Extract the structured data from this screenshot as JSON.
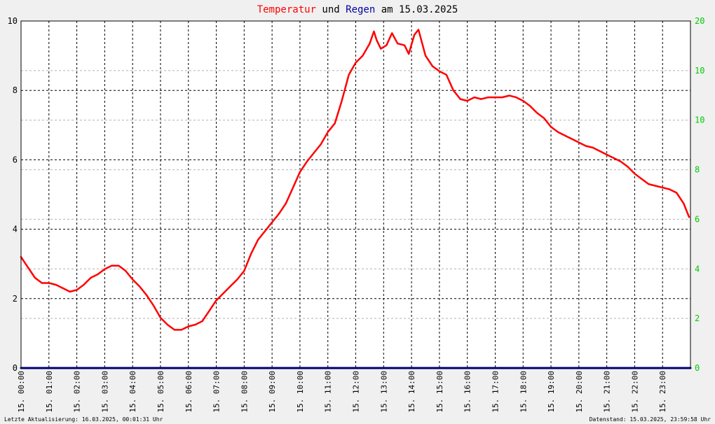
{
  "title": {
    "part1": "Temperatur",
    "part2": " und ",
    "part3": "Regen",
    "part4": " am 15.03.2025"
  },
  "footer": {
    "left": "Letzte Aktualisierung: 16.03.2025, 00:01:31 Uhr",
    "right": "Datenstand: 15.03.2025, 23:59:58 Uhr"
  },
  "colors": {
    "temperature": "#ff0000",
    "rain": "#0000a0",
    "right_axis": "#00cc00",
    "background": "#f0f0f0",
    "grid": "#000000"
  },
  "chart_data": {
    "type": "line",
    "x_tick_labels": [
      "15. 00:00",
      "15. 01:00",
      "15. 02:00",
      "15. 03:00",
      "15. 04:00",
      "15. 05:00",
      "15. 06:00",
      "15. 07:00",
      "15. 08:00",
      "15. 09:00",
      "15. 10:00",
      "15. 11:00",
      "15. 12:00",
      "15. 13:00",
      "15. 14:00",
      "15. 15:00",
      "15. 16:00",
      "15. 17:00",
      "15. 18:00",
      "15. 19:00",
      "15. 20:00",
      "15. 21:00",
      "15. 22:00",
      "15. 23:00"
    ],
    "xlim_hours": [
      0,
      24
    ],
    "y_left": {
      "ylim": [
        0,
        10
      ],
      "ticks": [
        "0",
        "2",
        "4",
        "6",
        "8",
        "10"
      ]
    },
    "y_right": {
      "ylim": [
        0,
        20
      ],
      "ticks": [
        "0",
        "2",
        "4",
        "6",
        "8",
        "10",
        "10",
        "20"
      ]
    },
    "grid": true,
    "series": [
      {
        "name": "Temperatur",
        "axis": "left",
        "x_hours": [
          0,
          0.25,
          0.5,
          0.75,
          1,
          1.25,
          1.5,
          1.75,
          2,
          2.25,
          2.5,
          2.75,
          3,
          3.25,
          3.5,
          3.75,
          4,
          4.25,
          4.5,
          4.75,
          5,
          5.25,
          5.5,
          5.75,
          6,
          6.25,
          6.5,
          6.75,
          7,
          7.25,
          7.5,
          7.75,
          8,
          8.25,
          8.5,
          8.75,
          9,
          9.25,
          9.5,
          9.75,
          10,
          10.25,
          10.5,
          10.75,
          11,
          11.25,
          11.5,
          11.75,
          12,
          12.25,
          12.5,
          12.65,
          12.75,
          12.9,
          13.1,
          13.3,
          13.5,
          13.75,
          13.9,
          14.1,
          14.25,
          14.5,
          14.75,
          15,
          15.25,
          15.5,
          15.75,
          16,
          16.25,
          16.5,
          16.75,
          17,
          17.25,
          17.5,
          17.75,
          18,
          18.25,
          18.5,
          18.75,
          19,
          19.25,
          19.5,
          19.75,
          20,
          20.25,
          20.5,
          20.75,
          21,
          21.25,
          21.5,
          21.75,
          22,
          22.25,
          22.5,
          22.75,
          23,
          23.25,
          23.5,
          23.75,
          23.95
        ],
        "values": [
          3.2,
          2.9,
          2.6,
          2.45,
          2.45,
          2.4,
          2.3,
          2.2,
          2.25,
          2.4,
          2.6,
          2.7,
          2.85,
          2.95,
          2.95,
          2.8,
          2.55,
          2.35,
          2.1,
          1.8,
          1.45,
          1.25,
          1.1,
          1.1,
          1.2,
          1.25,
          1.35,
          1.65,
          1.95,
          2.15,
          2.35,
          2.55,
          2.8,
          3.3,
          3.7,
          3.95,
          4.2,
          4.45,
          4.75,
          5.2,
          5.65,
          5.95,
          6.2,
          6.45,
          6.8,
          7.05,
          7.7,
          8.45,
          8.8,
          9.0,
          9.35,
          9.7,
          9.45,
          9.2,
          9.3,
          9.65,
          9.35,
          9.3,
          9.05,
          9.6,
          9.75,
          9.0,
          8.7,
          8.55,
          8.45,
          8.0,
          7.75,
          7.7,
          7.8,
          7.75,
          7.8,
          7.8,
          7.8,
          7.85,
          7.8,
          7.7,
          7.55,
          7.35,
          7.2,
          6.95,
          6.8,
          6.7,
          6.6,
          6.5,
          6.4,
          6.35,
          6.25,
          6.15,
          6.05,
          5.95,
          5.8,
          5.6,
          5.45,
          5.3,
          5.25,
          5.2,
          5.15,
          5.05,
          4.75,
          4.35
        ]
      },
      {
        "name": "Regen",
        "axis": "right",
        "x_hours": [
          0,
          24
        ],
        "values": [
          0,
          0
        ]
      }
    ]
  }
}
